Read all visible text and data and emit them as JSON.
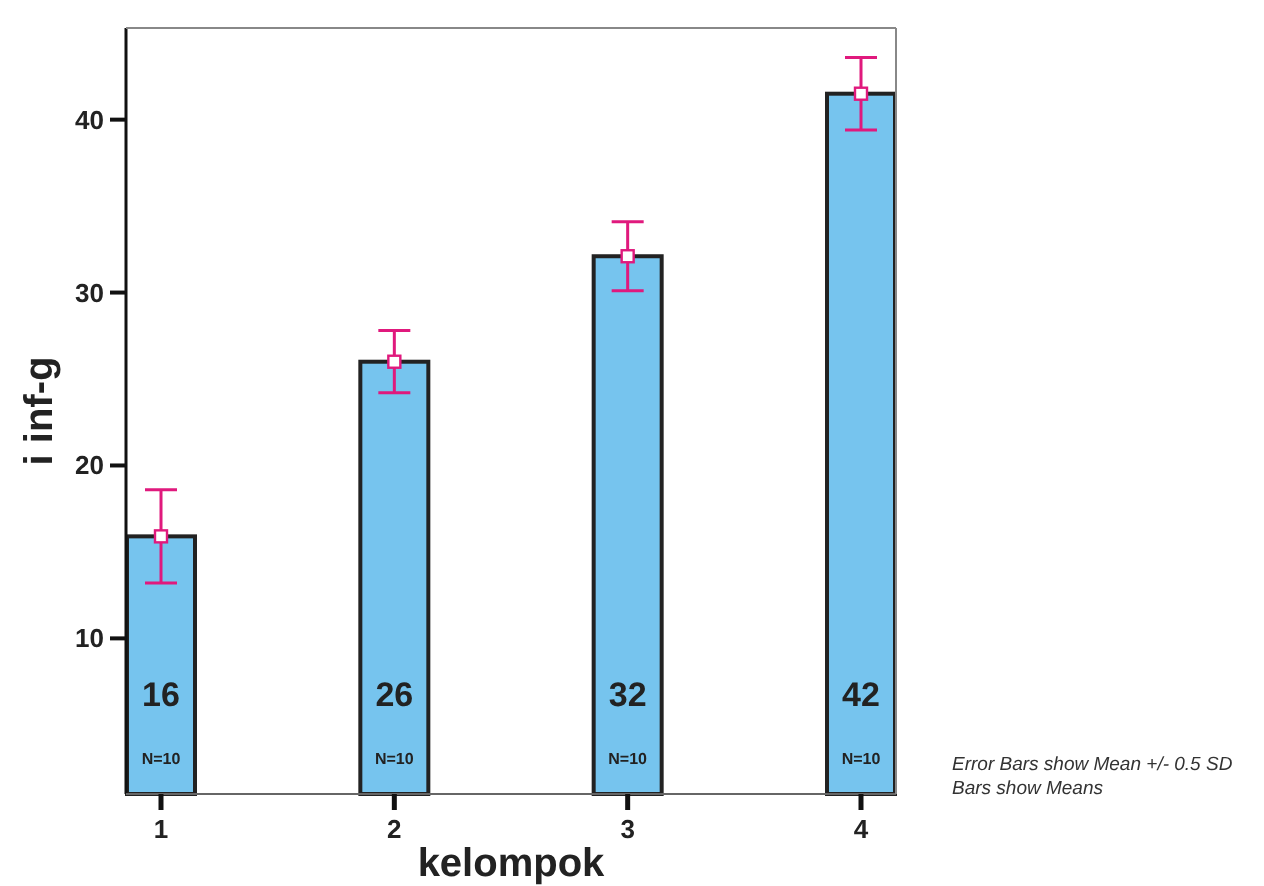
{
  "chart_data": {
    "type": "bar",
    "xlabel": "kelompok",
    "ylabel": "i inf-g",
    "categories": [
      "1",
      "2",
      "3",
      "4"
    ],
    "series": [
      {
        "type": "bar",
        "color": "#76c4ee",
        "values": [
          15.9,
          26.0,
          32.1,
          41.5
        ],
        "errors": [
          2.7,
          1.8,
          2.0,
          2.1
        ],
        "value_labels": [
          "16",
          "26",
          "32",
          "42"
        ]
      },
      {
        "type": "scatter",
        "color": "#e0197d",
        "marker": "square",
        "x": [
          "1",
          "2",
          "3",
          "4"
        ],
        "values": [
          15.9,
          26.0,
          32.1,
          41.5
        ]
      }
    ],
    "ylim": [
      1,
      45.3
    ],
    "yticks": [
      10,
      20,
      30,
      40
    ],
    "grid": false,
    "annotations": [
      "N=10",
      "N=10",
      "N=10",
      "N=10",
      "Error Bars show Mean +/- 0.5 SD",
      "Bars show Means"
    ]
  }
}
